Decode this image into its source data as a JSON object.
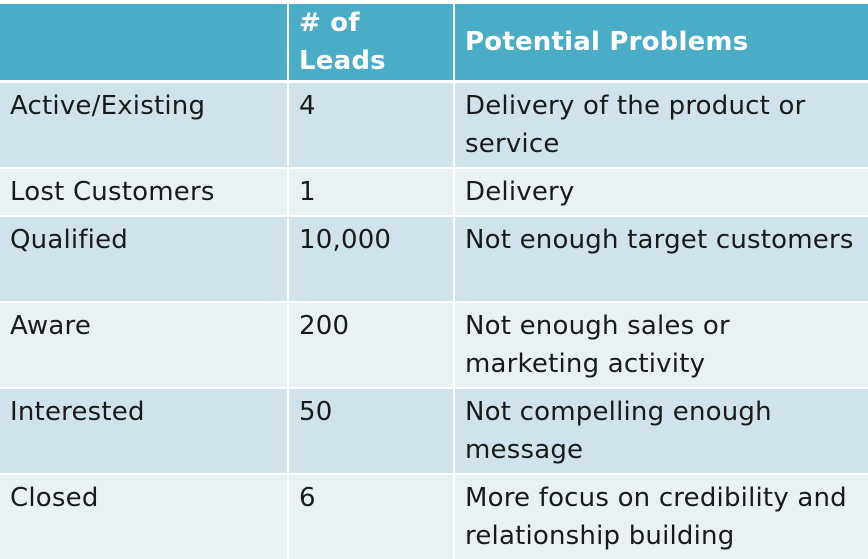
{
  "table": {
    "headers": [
      "",
      "# of Leads",
      "Potential Problems"
    ],
    "rows": [
      {
        "stage": "Active/Existing",
        "leads": "4",
        "problem": "Delivery of the product or service"
      },
      {
        "stage": "Lost Customers",
        "leads": "1",
        "problem": "Delivery"
      },
      {
        "stage": "Qualified",
        "leads": "10,000",
        "problem": "Not enough target customers"
      },
      {
        "stage": "Aware",
        "leads": "200",
        "problem": "Not enough sales or marketing activity"
      },
      {
        "stage": "Interested",
        "leads": "50",
        "problem": "Not compelling enough message"
      },
      {
        "stage": "Closed",
        "leads": "6",
        "problem": "More focus on credibility and relationship building"
      }
    ]
  },
  "colors": {
    "header": "#4bacc6",
    "row_odd": "#d0e3ea",
    "row_even": "#e9f1f4"
  }
}
